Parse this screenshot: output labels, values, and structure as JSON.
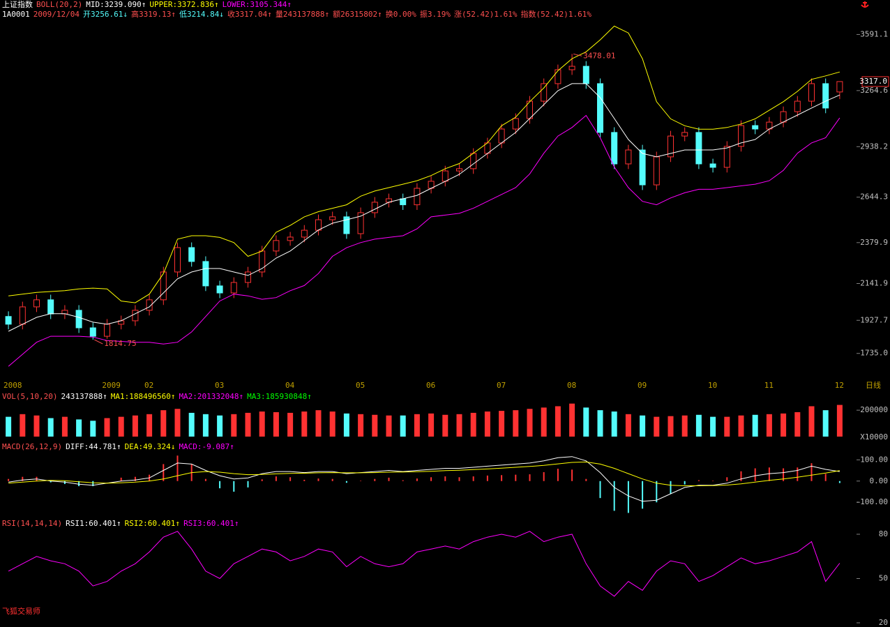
{
  "header": {
    "line1": [
      {
        "text": "上证指数",
        "color": "#ffffff"
      },
      {
        "text": "BOLL(20,2)",
        "color": "#ff5050"
      },
      {
        "text": "MID:3239.090↑",
        "color": "#ffffff"
      },
      {
        "text": "UPPER:3372.836↑",
        "color": "#ffff00"
      },
      {
        "text": "LOWER:3105.344↑",
        "color": "#ff00ff"
      }
    ],
    "line2": [
      {
        "text": "1A0001",
        "color": "#ffffff"
      },
      {
        "text": "2009/12/04",
        "color": "#ff5050"
      },
      {
        "text": "开3256.61↓",
        "color": "#54fcfc"
      },
      {
        "text": "高3319.13↑",
        "color": "#ff5050"
      },
      {
        "text": "低3214.84↓",
        "color": "#54fcfc"
      },
      {
        "text": "收3317.04↑",
        "color": "#ff5050"
      },
      {
        "text": "量243137888↑",
        "color": "#ff5050"
      },
      {
        "text": "额26315802↑",
        "color": "#ff5050"
      },
      {
        "text": "换0.00%",
        "color": "#ff5050"
      },
      {
        "text": "振3.19%",
        "color": "#ff5050"
      },
      {
        "text": "涨(52.42)1.61%",
        "color": "#ff5050"
      },
      {
        "text": "指数(52.42)1.61%",
        "color": "#ff5050"
      }
    ]
  },
  "footer": "飞狐交易师",
  "chart_data": [
    {
      "type": "candlestick",
      "period_label": "日线",
      "last_label": "3317.0",
      "up_color": "#ff3232",
      "down_color": "#54fcfc",
      "categories": [
        "2008",
        null,
        null,
        null,
        null,
        null,
        null,
        "2009",
        null,
        null,
        "02",
        null,
        null,
        null,
        null,
        "03",
        null,
        null,
        null,
        null,
        "04",
        null,
        null,
        null,
        null,
        "05",
        null,
        null,
        null,
        null,
        "06",
        null,
        null,
        null,
        null,
        "07",
        null,
        null,
        null,
        null,
        "08",
        null,
        null,
        null,
        null,
        "09",
        null,
        null,
        null,
        null,
        "10",
        null,
        null,
        null,
        "11",
        null,
        null,
        null,
        null,
        "12"
      ],
      "open": [
        1950,
        1905,
        2006,
        2047,
        1965,
        1986,
        1884,
        1835,
        1905,
        1925,
        1986,
        2047,
        2209,
        2351,
        2270,
        2128,
        2087,
        2148,
        2209,
        2331,
        2392,
        2412,
        2452,
        2513,
        2530,
        2432,
        2554,
        2615,
        2635,
        2600,
        2696,
        2737,
        2797,
        2810,
        2899,
        2960,
        3041,
        3102,
        3203,
        3305,
        3386,
        3406,
        3305,
        3021,
        2838,
        2919,
        2716,
        2879,
        3000,
        3021,
        2838,
        2818,
        2940,
        3061,
        3041,
        3081,
        3142,
        3203,
        3305,
        3256.61
      ],
      "high": [
        1980,
        2036,
        2077,
        2077,
        2016,
        2016,
        1914,
        1935,
        1955,
        2016,
        2077,
        2239,
        2381,
        2381,
        2300,
        2158,
        2178,
        2239,
        2361,
        2422,
        2442,
        2482,
        2543,
        2560,
        2560,
        2584,
        2645,
        2665,
        2665,
        2726,
        2767,
        2827,
        2840,
        2929,
        2990,
        3071,
        3132,
        3233,
        3335,
        3416,
        3478.01,
        3436,
        3335,
        3051,
        2949,
        2949,
        2909,
        3030,
        3051,
        3051,
        2868,
        2970,
        3091,
        3091,
        3111,
        3172,
        3233,
        3335,
        3335,
        3319.13
      ],
      "low": [
        1875,
        1875,
        1976,
        1935,
        1935,
        1854,
        1814.75,
        1820,
        1875,
        1895,
        1956,
        2017,
        2179,
        2240,
        2098,
        2057,
        2057,
        2118,
        2179,
        2301,
        2362,
        2382,
        2422,
        2483,
        2402,
        2402,
        2524,
        2585,
        2570,
        2570,
        2666,
        2707,
        2767,
        2780,
        2869,
        2930,
        3011,
        3072,
        3173,
        3275,
        3356,
        3275,
        2991,
        2808,
        2808,
        2686,
        2686,
        2849,
        2970,
        2808,
        2788,
        2788,
        2910,
        3011,
        3011,
        3051,
        3112,
        3173,
        3133,
        3214.84
      ],
      "close": [
        1905,
        2006,
        2047,
        1965,
        1986,
        1884,
        1835,
        1905,
        1925,
        1986,
        2047,
        2209,
        2351,
        2270,
        2128,
        2087,
        2148,
        2209,
        2331,
        2392,
        2412,
        2452,
        2513,
        2530,
        2432,
        2554,
        2615,
        2635,
        2600,
        2696,
        2737,
        2797,
        2810,
        2899,
        2960,
        3041,
        3102,
        3203,
        3305,
        3386,
        3406,
        3305,
        3021,
        2838,
        2919,
        2716,
        2879,
        3000,
        3021,
        2838,
        2818,
        2940,
        3061,
        3041,
        3081,
        3142,
        3203,
        3305,
        3163,
        3317.04
      ],
      "series": [
        {
          "color": "#ffffff",
          "values": [
            1864,
            1905,
            1945,
            1966,
            1966,
            1945,
            1917,
            1905,
            1925,
            1966,
            2006,
            2087,
            2169,
            2209,
            2229,
            2229,
            2209,
            2189,
            2229,
            2290,
            2331,
            2392,
            2453,
            2493,
            2513,
            2534,
            2574,
            2615,
            2635,
            2655,
            2696,
            2736,
            2777,
            2838,
            2899,
            2960,
            3021,
            3102,
            3183,
            3264,
            3305,
            3305,
            3224,
            3102,
            2980,
            2899,
            2879,
            2899,
            2919,
            2919,
            2919,
            2931,
            2960,
            2980,
            3041,
            3082,
            3122,
            3163,
            3203,
            3239.09
          ]
        },
        {
          "color": "#ffff00",
          "values": [
            2070,
            2080,
            2090,
            2095,
            2100,
            2110,
            2115,
            2110,
            2040,
            2030,
            2080,
            2200,
            2400,
            2420,
            2420,
            2410,
            2380,
            2300,
            2330,
            2440,
            2480,
            2530,
            2560,
            2580,
            2600,
            2650,
            2680,
            2700,
            2720,
            2740,
            2770,
            2810,
            2840,
            2900,
            2960,
            3060,
            3110,
            3200,
            3280,
            3380,
            3450,
            3490,
            3560,
            3640,
            3600,
            3450,
            3200,
            3100,
            3060,
            3040,
            3040,
            3050,
            3070,
            3100,
            3150,
            3200,
            3260,
            3330,
            3350,
            3372.84
          ]
        },
        {
          "color": "#ff00ff",
          "values": [
            1660,
            1730,
            1800,
            1835,
            1835,
            1835,
            1830,
            1810,
            1805,
            1800,
            1800,
            1790,
            1800,
            1860,
            1950,
            2040,
            2080,
            2070,
            2050,
            2060,
            2100,
            2130,
            2200,
            2300,
            2350,
            2380,
            2400,
            2410,
            2420,
            2460,
            2530,
            2540,
            2550,
            2580,
            2620,
            2660,
            2700,
            2780,
            2900,
            3000,
            3050,
            3120,
            2990,
            2820,
            2700,
            2620,
            2600,
            2640,
            2670,
            2690,
            2690,
            2700,
            2710,
            2720,
            2740,
            2800,
            2900,
            2960,
            2990,
            3105.34
          ]
        }
      ],
      "ylim": [
        1600,
        3670
      ],
      "yticks": [
        3591.1,
        3264.6,
        2938.2,
        2644.3,
        2379.9,
        2141.9,
        1927.7,
        {
          "value": 1735,
          "label": "1735.0"
        }
      ]
    },
    {
      "type": "bar",
      "up_color": "#ff3232",
      "down_color": "#54fcfc",
      "unit_label": "X10000",
      "legend": [
        {
          "text": "VOL(5,10,20)",
          "color": "#ff5050"
        },
        {
          "text": "243137888↑",
          "color": "#ffffff"
        },
        {
          "text": "MA1:188496560↑",
          "color": "#ffff00"
        },
        {
          "text": "MA2:201332048↑",
          "color": "#ff00ff"
        },
        {
          "text": "MA3:185930848↑",
          "color": "#00ff00"
        }
      ],
      "values": [
        150000,
        170000,
        160000,
        140000,
        150000,
        130000,
        120000,
        140000,
        150000,
        160000,
        170000,
        200000,
        210000,
        180000,
        170000,
        160000,
        170000,
        180000,
        190000,
        185000,
        180000,
        190000,
        200000,
        190000,
        175000,
        170000,
        165000,
        160000,
        160000,
        170000,
        175000,
        165000,
        170000,
        180000,
        190000,
        195000,
        200000,
        210000,
        220000,
        230000,
        250000,
        220000,
        200000,
        190000,
        170000,
        160000,
        150000,
        155000,
        160000,
        165000,
        150000,
        150000,
        160000,
        165000,
        170000,
        175000,
        185000,
        230000,
        200000,
        240000
      ],
      "ylim": [
        0,
        280000
      ],
      "yticks": [
        200000
      ]
    },
    {
      "type": "line",
      "up_color": "#ff3232",
      "down_color": "#54fcfc",
      "legend": [
        {
          "text": "MACD(26,12,9)",
          "color": "#ff5050"
        },
        {
          "text": "DIFF:44.781↑",
          "color": "#ffffff"
        },
        {
          "text": "DEA:49.324↓",
          "color": "#ffff00"
        },
        {
          "text": "MACD:-9.087↑",
          "color": "#ff00ff"
        }
      ],
      "histogram": [
        10,
        20,
        20,
        -6,
        -14,
        -24,
        -24,
        0,
        16,
        20,
        30,
        80,
        120,
        80,
        10,
        -34,
        -50,
        -30,
        8,
        22,
        18,
        6,
        12,
        10,
        -8,
        2,
        10,
        16,
        4,
        12,
        18,
        22,
        18,
        22,
        26,
        28,
        30,
        32,
        42,
        58,
        54,
        10,
        -80,
        -140,
        -150,
        -130,
        -100,
        -60,
        -16,
        4,
        2,
        18,
        46,
        60,
        64,
        60,
        64,
        84,
        34,
        -9.087
      ],
      "series": [
        {
          "color": "#ffffff",
          "values": [
            -5,
            5,
            10,
            0,
            -5,
            -15,
            -20,
            -10,
            0,
            5,
            15,
            50,
            85,
            80,
            50,
            25,
            10,
            15,
            35,
            45,
            45,
            40,
            45,
            45,
            35,
            40,
            45,
            50,
            45,
            50,
            55,
            60,
            60,
            65,
            70,
            75,
            80,
            85,
            95,
            110,
            115,
            95,
            40,
            -30,
            -70,
            -95,
            -90,
            -60,
            -30,
            -20,
            -20,
            -10,
            10,
            25,
            35,
            40,
            50,
            70,
            55,
            44.781
          ]
        },
        {
          "color": "#ffff00",
          "values": [
            -10,
            -5,
            0,
            3,
            2,
            -3,
            -8,
            -10,
            -8,
            -5,
            0,
            10,
            25,
            40,
            45,
            42,
            35,
            30,
            31,
            34,
            36,
            37,
            39,
            40,
            39,
            39,
            40,
            42,
            43,
            44,
            46,
            49,
            51,
            54,
            57,
            61,
            65,
            69,
            74,
            81,
            88,
            90,
            80,
            60,
            35,
            10,
            -10,
            -20,
            -22,
            -22,
            -21,
            -19,
            -13,
            -5,
            3,
            10,
            18,
            28,
            38,
            49.324
          ]
        }
      ],
      "ylim": [
        -165,
        147
      ],
      "yticks": [
        {
          "value": 100,
          "label": "100.00"
        },
        {
          "value": 0,
          "label": "0.00"
        },
        {
          "value": -100,
          "label": "-100.00"
        }
      ]
    },
    {
      "type": "line",
      "legend": [
        {
          "text": "RSI(14,14,14)",
          "color": "#ff5050"
        },
        {
          "text": "RSI1:60.401↑",
          "color": "#ffffff"
        },
        {
          "text": "RSI2:60.401↑",
          "color": "#ffff00"
        },
        {
          "text": "RSI3:60.401↑",
          "color": "#ff00ff"
        }
      ],
      "series": [
        {
          "color": "#ff00ff",
          "values": [
            55,
            60,
            65,
            62,
            60,
            55,
            45,
            48,
            55,
            60,
            68,
            78,
            82,
            70,
            55,
            50,
            60,
            65,
            70,
            68,
            62,
            65,
            70,
            68,
            58,
            65,
            60,
            58,
            60,
            68,
            70,
            72,
            70,
            75,
            78,
            80,
            78,
            82,
            75,
            78,
            80,
            60,
            45,
            38,
            48,
            42,
            55,
            62,
            60,
            48,
            52,
            58,
            64,
            60,
            62,
            65,
            68,
            75,
            48,
            60.401
          ]
        }
      ],
      "ylim": [
        20,
        80
      ],
      "yticks": [
        80,
        50,
        20
      ]
    }
  ]
}
